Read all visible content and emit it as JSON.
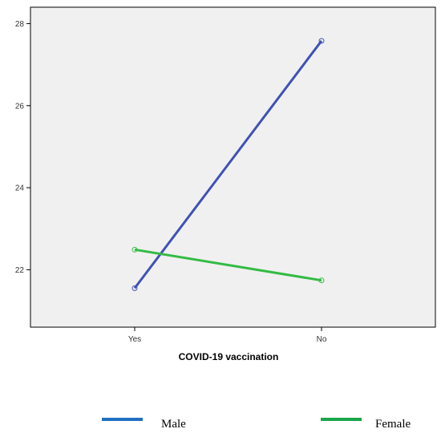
{
  "chart_data": {
    "type": "line",
    "title": "",
    "xlabel": "COVID-19 vaccination",
    "ylabel": "",
    "categories": [
      "Yes",
      "No"
    ],
    "ylim": [
      20.6,
      28.4
    ],
    "yticks": [
      22,
      24,
      26,
      28
    ],
    "grid": false,
    "legend_position": "bottom",
    "series": [
      {
        "name": "Male",
        "values": [
          21.55,
          27.58
        ],
        "color": "#3F51B5",
        "legend_color": "#1F6FC1"
      },
      {
        "name": "Female",
        "values": [
          22.49,
          21.74
        ],
        "color": "#33BB44",
        "legend_color": "#1AA64A"
      }
    ],
    "plot_background": "#F0F0F0"
  }
}
